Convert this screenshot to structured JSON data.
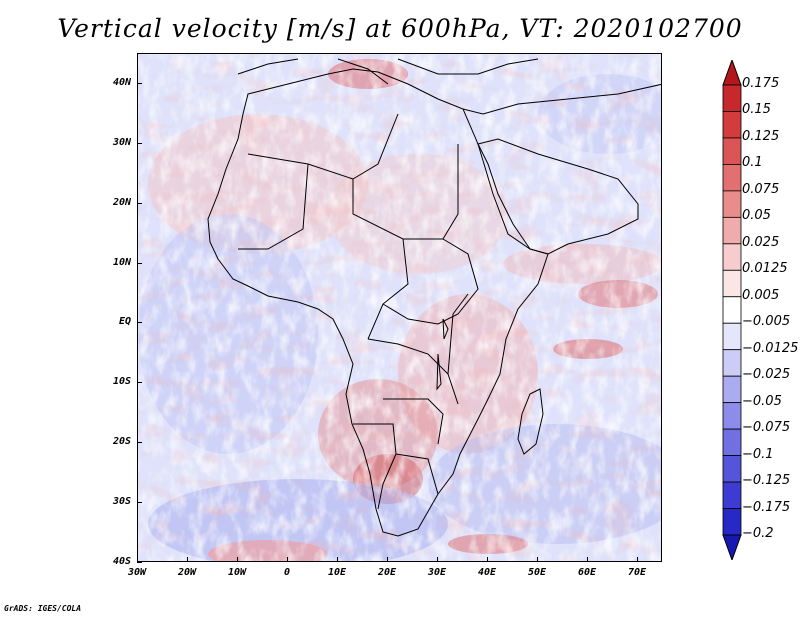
{
  "title": "Vertical velocity [m/s] at 600hPa, VT: 2020102700",
  "map": {
    "region": "Africa and surrounding oceans",
    "lon_range": [
      -30,
      75
    ],
    "lat_range": [
      -40,
      45
    ],
    "field": "Vertical velocity at 600hPa (m/s)"
  },
  "axes": {
    "y_ticks": [
      {
        "label": "40N",
        "lat": 40
      },
      {
        "label": "30N",
        "lat": 30
      },
      {
        "label": "20N",
        "lat": 20
      },
      {
        "label": "10N",
        "lat": 10
      },
      {
        "label": "EQ",
        "lat": 0
      },
      {
        "label": "10S",
        "lat": -10
      },
      {
        "label": "20S",
        "lat": -20
      },
      {
        "label": "30S",
        "lat": -30
      },
      {
        "label": "40S",
        "lat": -40
      }
    ],
    "x_ticks": [
      {
        "label": "30W",
        "lon": -30
      },
      {
        "label": "20W",
        "lon": -20
      },
      {
        "label": "10W",
        "lon": -10
      },
      {
        "label": "0",
        "lon": 0
      },
      {
        "label": "10E",
        "lon": 10
      },
      {
        "label": "20E",
        "lon": 20
      },
      {
        "label": "30E",
        "lon": 30
      },
      {
        "label": "40E",
        "lon": 40
      },
      {
        "label": "50E",
        "lon": 50
      },
      {
        "label": "60E",
        "lon": 60
      },
      {
        "label": "70E",
        "lon": 70
      }
    ]
  },
  "colorbar": {
    "labels": [
      "0.175",
      "0.15",
      "0.125",
      "0.1",
      "0.075",
      "0.05",
      "0.025",
      "0.0125",
      "0.005",
      "−0.005",
      "−0.0125",
      "−0.025",
      "−0.05",
      "−0.075",
      "−0.1",
      "−0.125",
      "−0.175",
      "−0.2"
    ],
    "colors": [
      "#b3171c",
      "#c7282c",
      "#d23c3d",
      "#dc5556",
      "#e37071",
      "#ea8c8c",
      "#f0abab",
      "#f6cccc",
      "#fbe6e6",
      "#ffffff",
      "#e6e6fb",
      "#ccccf6",
      "#ababf0",
      "#8c8cea",
      "#7070e3",
      "#5555dc",
      "#3c3cd2",
      "#2828c7",
      "#1717b3"
    ]
  },
  "credit": "GrADS: IGES/COLA"
}
